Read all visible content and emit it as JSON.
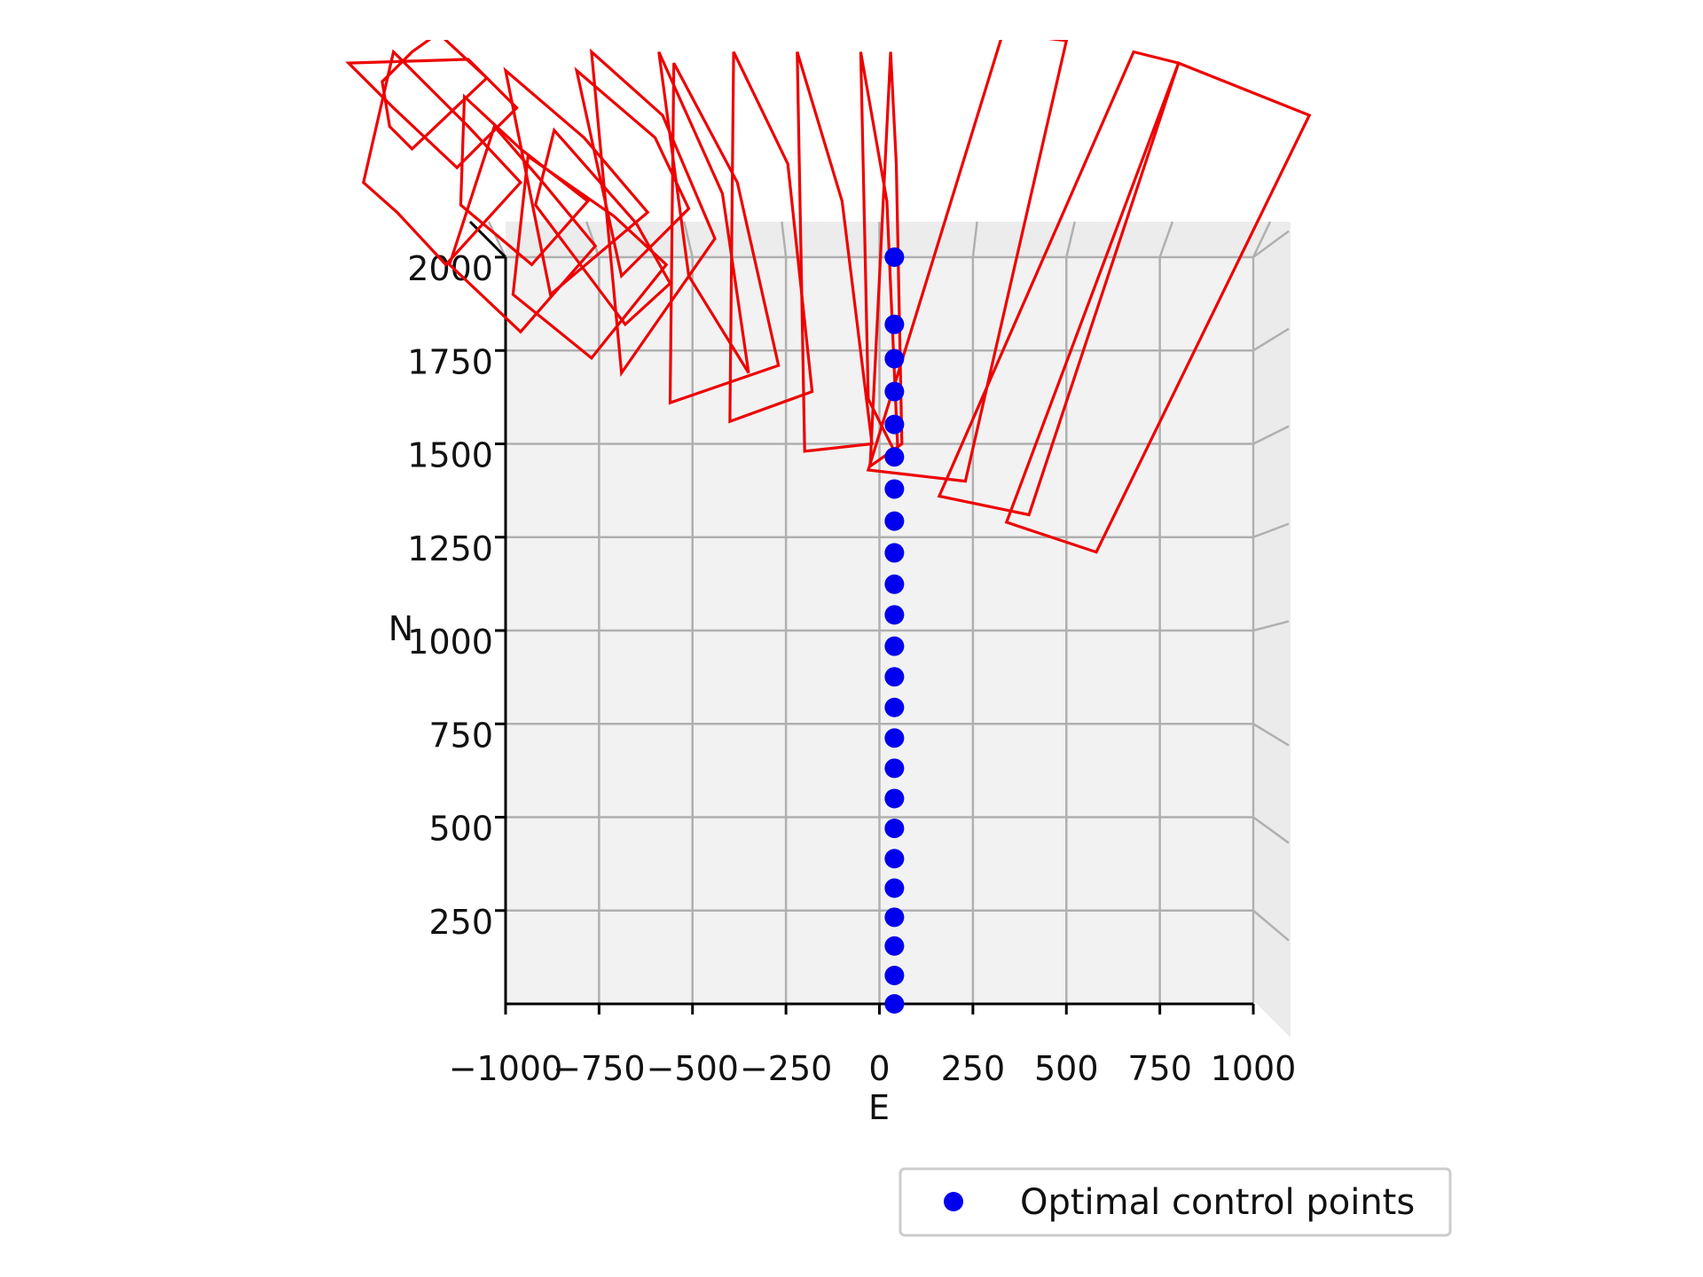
{
  "chart_data": {
    "type": "scatter",
    "title": "",
    "xlabel": "E",
    "ylabel": "N",
    "xlim": [
      -1000,
      1000
    ],
    "ylim": [
      0,
      2000
    ],
    "x_ticks": [
      -1000,
      -750,
      -500,
      -250,
      0,
      250,
      500,
      750,
      1000
    ],
    "x_tick_labels": [
      "−1000",
      "−750",
      "−500",
      "−250",
      "0",
      "250",
      "500",
      "750",
      "1000"
    ],
    "y_ticks": [
      250,
      500,
      750,
      1000,
      1250,
      1500,
      1750,
      2000
    ],
    "y_tick_labels": [
      "250",
      "500",
      "750",
      "1000",
      "1250",
      "1500",
      "1750",
      "2000"
    ],
    "grid": true,
    "legend_position": "bottom-right",
    "colors": {
      "points": "#0000ee",
      "footprints": "#ee0000",
      "pane": "#f2f2f2",
      "grid": "#b0b0b0"
    },
    "series": [
      {
        "name": "Optimal control points",
        "marker": "circle",
        "x": [
          40,
          40,
          40,
          40,
          40,
          40,
          40,
          40,
          40,
          40,
          40,
          40,
          40,
          40,
          40,
          40,
          40,
          40,
          40,
          40,
          40,
          40,
          40,
          40
        ],
        "y": [
          0,
          76,
          155,
          232,
          310,
          389,
          470,
          550,
          631,
          712,
          794,
          876,
          958,
          1042,
          1124,
          1208,
          1293,
          1379,
          1465,
          1552,
          1640,
          1728,
          1820,
          2000
        ]
      }
    ],
    "footprints": [
      {
        "points": [
          [
            -1250,
            2550
          ],
          [
            -1330,
            2470
          ],
          [
            -1310,
            2350
          ],
          [
            -1250,
            2290
          ],
          [
            -1050,
            2480
          ],
          [
            -1180,
            2600
          ]
        ]
      },
      {
        "points": [
          [
            -1420,
            2520
          ],
          [
            -1300,
            2400
          ],
          [
            -1130,
            2240
          ],
          [
            -970,
            2400
          ],
          [
            -1100,
            2530
          ]
        ]
      },
      {
        "points": [
          [
            -1300,
            2550
          ],
          [
            -1100,
            2350
          ],
          [
            -960,
            2200
          ],
          [
            -1160,
            1980
          ],
          [
            -1290,
            2120
          ],
          [
            -1380,
            2200
          ]
        ]
      },
      {
        "points": [
          [
            -1110,
            2430
          ],
          [
            -960,
            2290
          ],
          [
            -780,
            2150
          ],
          [
            -930,
            1980
          ],
          [
            -1120,
            2140
          ]
        ]
      },
      {
        "points": [
          [
            -1030,
            2350
          ],
          [
            -900,
            2200
          ],
          [
            -760,
            2030
          ],
          [
            -960,
            1800
          ],
          [
            -1150,
            1980
          ]
        ]
      },
      {
        "points": [
          [
            -940,
            2270
          ],
          [
            -710,
            2110
          ],
          [
            -570,
            1980
          ],
          [
            -770,
            1730
          ],
          [
            -980,
            1900
          ]
        ]
      },
      {
        "points": [
          [
            -870,
            2340
          ],
          [
            -650,
            2090
          ],
          [
            -560,
            1930
          ],
          [
            -680,
            1820
          ],
          [
            -920,
            2140
          ]
        ]
      },
      {
        "points": [
          [
            -1000,
            2500
          ],
          [
            -790,
            2320
          ],
          [
            -620,
            2120
          ],
          [
            -880,
            1900
          ]
        ]
      },
      {
        "points": [
          [
            -810,
            2500
          ],
          [
            -600,
            2320
          ],
          [
            -510,
            2130
          ],
          [
            -690,
            1950
          ]
        ]
      },
      {
        "points": [
          [
            -770,
            2550
          ],
          [
            -580,
            2380
          ],
          [
            -440,
            2050
          ],
          [
            -690,
            1690
          ]
        ]
      },
      {
        "points": [
          [
            -550,
            2520
          ],
          [
            -380,
            2200
          ],
          [
            -270,
            1710
          ],
          [
            -560,
            1610
          ]
        ]
      },
      {
        "points": [
          [
            -590,
            2550
          ],
          [
            -420,
            2170
          ],
          [
            -350,
            1690
          ],
          [
            -510,
            1950
          ]
        ]
      },
      {
        "points": [
          [
            -390,
            2550
          ],
          [
            -245,
            2250
          ],
          [
            -180,
            1640
          ],
          [
            -400,
            1560
          ]
        ]
      },
      {
        "points": [
          [
            -220,
            2550
          ],
          [
            -100,
            2150
          ],
          [
            -20,
            1500
          ],
          [
            -200,
            1480
          ]
        ]
      },
      {
        "points": [
          [
            -50,
            2550
          ],
          [
            20,
            2150
          ],
          [
            50,
            1460
          ],
          [
            -30,
            1620
          ]
        ]
      },
      {
        "points": [
          [
            30,
            2550
          ],
          [
            45,
            2250
          ],
          [
            60,
            1500
          ],
          [
            -25,
            1440
          ]
        ]
      },
      {
        "points": [
          [
            330,
            2600
          ],
          [
            500,
            2580
          ],
          [
            230,
            1400
          ],
          [
            -30,
            1430
          ]
        ]
      },
      {
        "points": [
          [
            680,
            2550
          ],
          [
            800,
            2520
          ],
          [
            400,
            1310
          ],
          [
            160,
            1360
          ]
        ]
      },
      {
        "points": [
          [
            800,
            2520
          ],
          [
            1150,
            2380
          ],
          [
            580,
            1210
          ],
          [
            340,
            1290
          ]
        ]
      }
    ]
  },
  "legend": {
    "label": "Optimal control points"
  }
}
